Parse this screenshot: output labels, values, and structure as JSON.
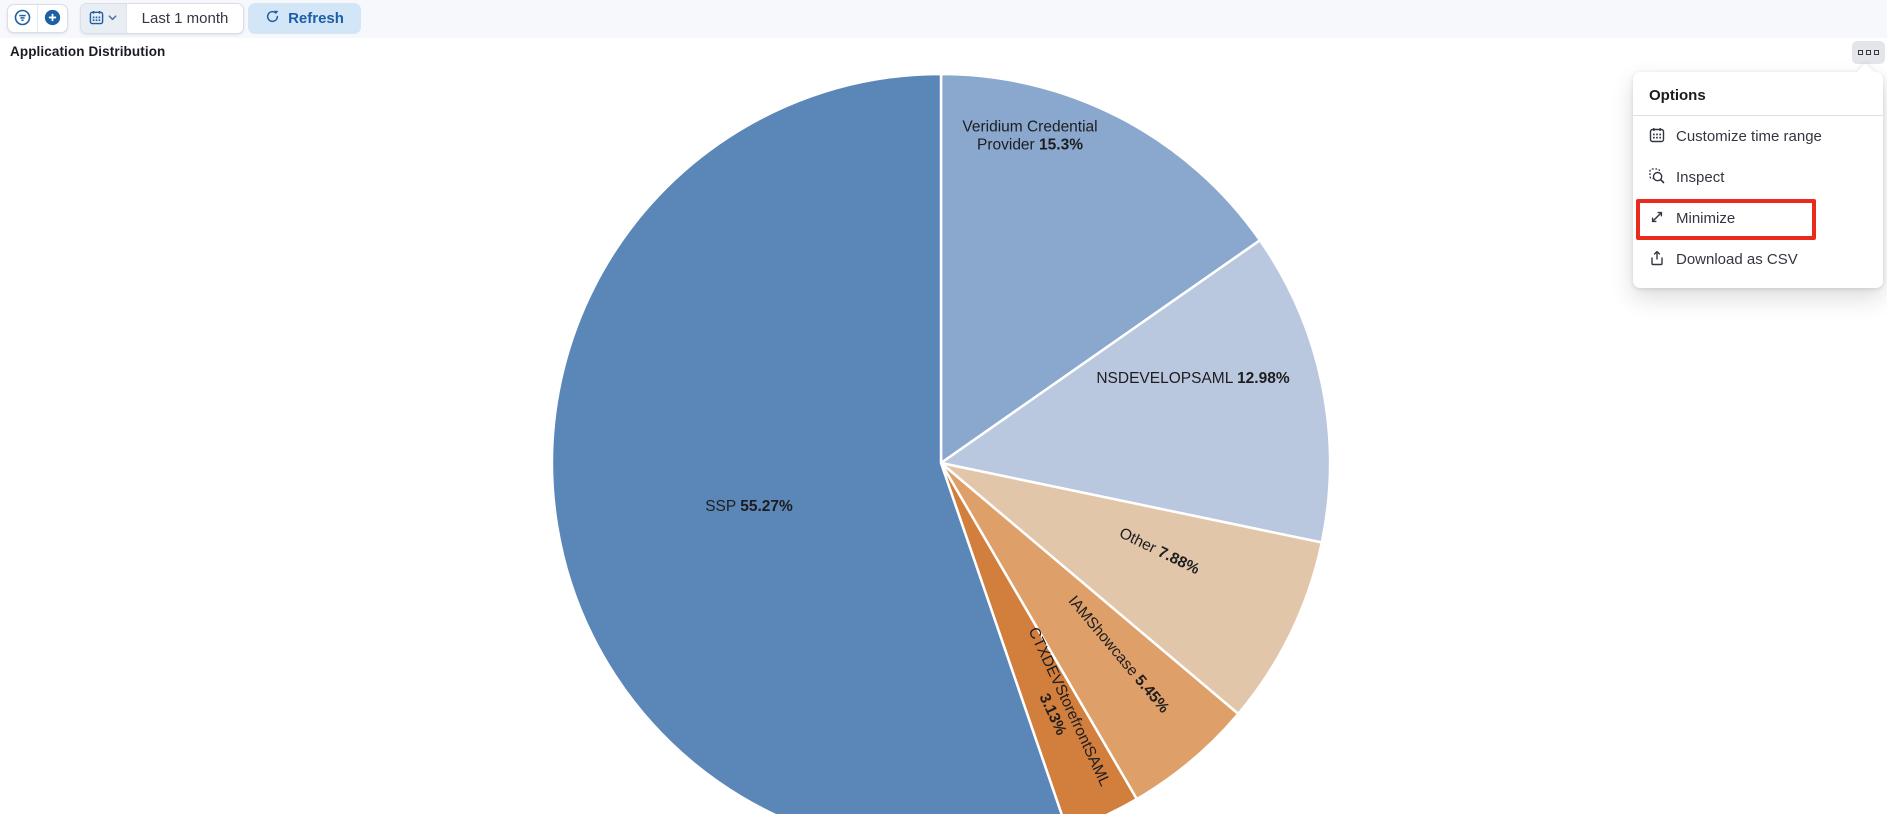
{
  "toolbar": {
    "date_range_value": "Last 1 month",
    "refresh_label": "Refresh"
  },
  "panel": {
    "title": "Application Distribution"
  },
  "options_menu": {
    "title": "Options",
    "items": [
      {
        "label": "Customize time range",
        "icon": "calendar-icon"
      },
      {
        "label": "Inspect",
        "icon": "inspect-icon"
      },
      {
        "label": "Minimize",
        "icon": "minimize-icon",
        "highlighted": true
      },
      {
        "label": "Download as CSV",
        "icon": "export-icon"
      }
    ],
    "highlight_color": "#ea2a1a"
  },
  "chart_data": {
    "type": "pie",
    "title": "Application Distribution",
    "direction": "clockwise",
    "start_angle_deg": 0,
    "legend": "none",
    "labels_on_slices": true,
    "slices": [
      {
        "label": "Veridium Credential Provider",
        "value": 15.3,
        "pct_label": "15.3%",
        "color": "#8aa8cd"
      },
      {
        "label": "NSDEVELOPSAML",
        "value": 12.98,
        "pct_label": "12.98%",
        "color": "#b9c8df"
      },
      {
        "label": "Other",
        "value": 7.88,
        "pct_label": "7.88%",
        "color": "#e1c6aa"
      },
      {
        "label": "IAMShowcase",
        "value": 5.45,
        "pct_label": "5.45%",
        "color": "#df9f69"
      },
      {
        "label": "CTXDEVStorefrontSAML",
        "value": 3.13,
        "pct_label": "3.13%",
        "color": "#d27e3d"
      },
      {
        "label": "SSP",
        "value": 55.27,
        "pct_label": "55.27%",
        "color": "#5a87b8"
      }
    ]
  },
  "colors": {
    "icon_blue": "#1b5fa5",
    "toolbar_bg": "#f7f8fc",
    "slice_border": "#ffffff"
  }
}
